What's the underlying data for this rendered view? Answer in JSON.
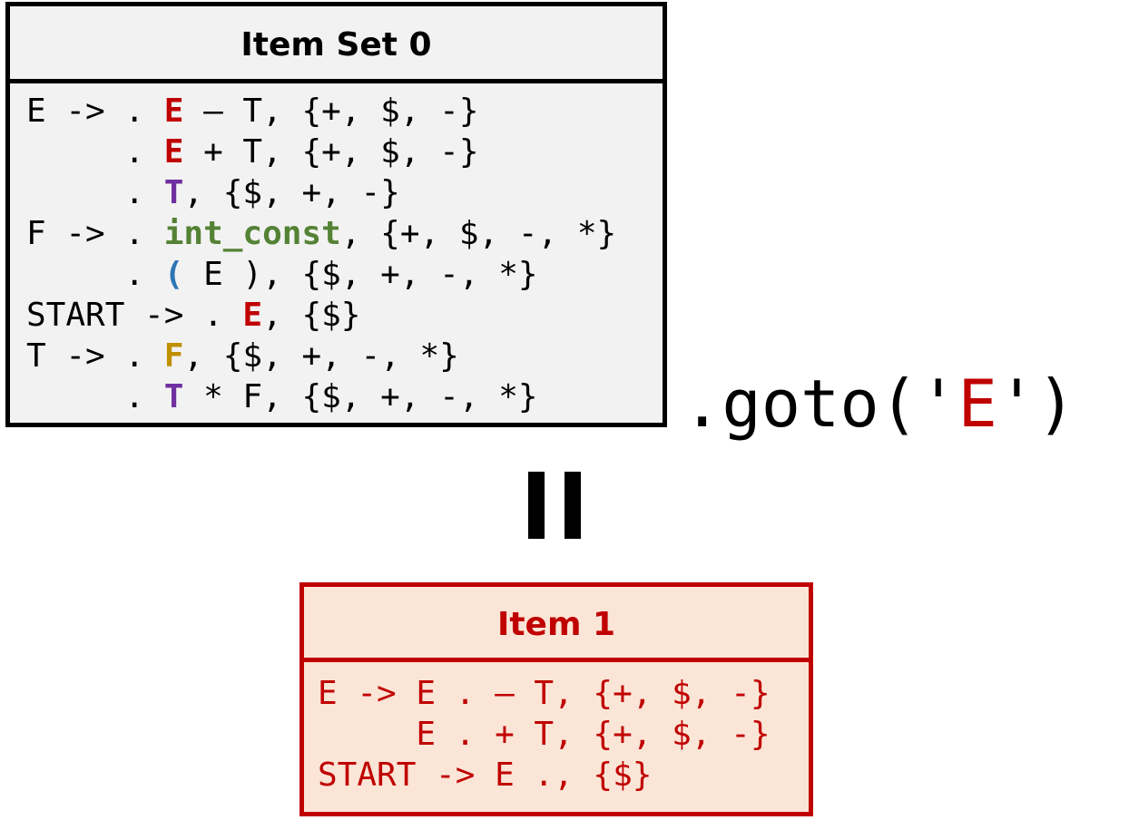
{
  "colors": {
    "E": "#c00000",
    "T": "#7030a0",
    "F": "#bf9000",
    "int_const": "#548235",
    "paren": "#2e75b6",
    "item1": "#c00000"
  },
  "item_set_0": {
    "title": "Item Set 0",
    "lines": [
      [
        {
          "t": "E -> . "
        },
        {
          "t": "E",
          "c": "E"
        },
        {
          "t": " – T, {+, $, -}"
        }
      ],
      [
        {
          "t": "     . "
        },
        {
          "t": "E",
          "c": "E"
        },
        {
          "t": " + T, {+, $, -}"
        }
      ],
      [
        {
          "t": "     . "
        },
        {
          "t": "T",
          "c": "T"
        },
        {
          "t": ", {$, +, -}"
        }
      ],
      [
        {
          "t": "F -> . "
        },
        {
          "t": "int_const",
          "c": "int_const"
        },
        {
          "t": ", {+, $, -, *}"
        }
      ],
      [
        {
          "t": "     . "
        },
        {
          "t": "(",
          "c": "paren"
        },
        {
          "t": " E ), {$, +, -, *}"
        }
      ],
      [
        {
          "t": "START -> . "
        },
        {
          "t": "E",
          "c": "E"
        },
        {
          "t": ", {$}"
        }
      ],
      [
        {
          "t": "T -> . "
        },
        {
          "t": "F",
          "c": "F"
        },
        {
          "t": ", {$, +, -, *}"
        }
      ],
      [
        {
          "t": "     . "
        },
        {
          "t": "T",
          "c": "T"
        },
        {
          "t": " * F, {$, +, -, *}"
        }
      ]
    ]
  },
  "goto": {
    "prefix": ".goto('",
    "symbol": "E",
    "suffix": "')"
  },
  "item_1": {
    "title": "Item 1",
    "lines": [
      "E -> E . – T, {+, $, -}",
      "     E . + T, {+, $, -}",
      "START -> E ., {$}"
    ]
  }
}
